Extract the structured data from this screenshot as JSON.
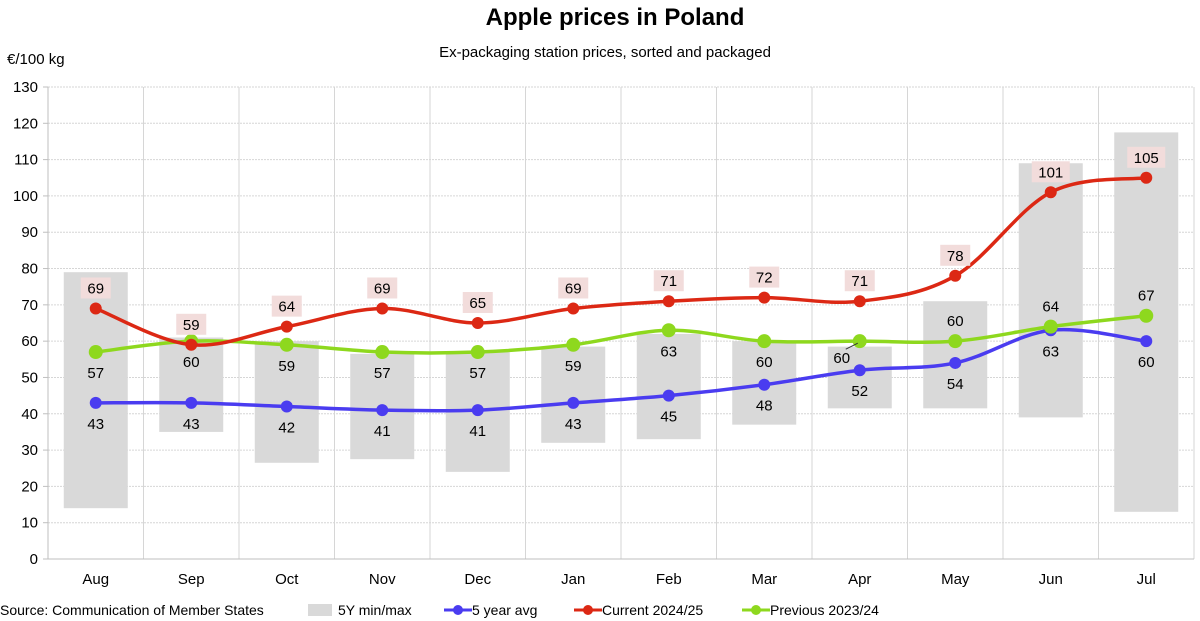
{
  "chart_data": {
    "type": "line",
    "title": "Apple prices in Poland",
    "subtitle": "Ex-packaging station prices, sorted and packaged",
    "ylabel": "€/100 kg",
    "xlabel": "",
    "ylim": [
      0,
      130
    ],
    "yticks": [
      0,
      10,
      20,
      30,
      40,
      50,
      60,
      70,
      80,
      90,
      100,
      110,
      120,
      130
    ],
    "grid": true,
    "legend_position": "bottom",
    "categories": [
      "Aug",
      "Sep",
      "Oct",
      "Nov",
      "Dec",
      "Jan",
      "Feb",
      "Mar",
      "Apr",
      "May",
      "Jun",
      "Jul"
    ],
    "range_series": {
      "name": "5Y min/max",
      "color": "#d9d9d9",
      "min": [
        14,
        35,
        26.5,
        27.5,
        24,
        32,
        33,
        37,
        41.5,
        41.5,
        39,
        13
      ],
      "max": [
        79,
        61,
        60,
        56.5,
        57,
        58.5,
        62,
        60,
        58.5,
        71,
        109,
        117.5
      ]
    },
    "series": [
      {
        "name": "5 year avg",
        "color": "#4a3cf0",
        "values": [
          43,
          43,
          42,
          41,
          41,
          43,
          45,
          48,
          52,
          54,
          63,
          60
        ],
        "label_position": "below"
      },
      {
        "name": "Current 2024/25",
        "color": "#dc2814",
        "values": [
          69,
          59,
          64,
          69,
          65,
          69,
          71,
          72,
          71,
          78,
          101,
          105
        ],
        "label_position": "above"
      },
      {
        "name": "Previous 2023/24",
        "color": "#8ed81e",
        "values": [
          57,
          60,
          59,
          57,
          57,
          59,
          63,
          60,
          60,
          60,
          64,
          67
        ],
        "label_position": "mixed"
      }
    ]
  },
  "source": "Source: Communication  of Member States"
}
